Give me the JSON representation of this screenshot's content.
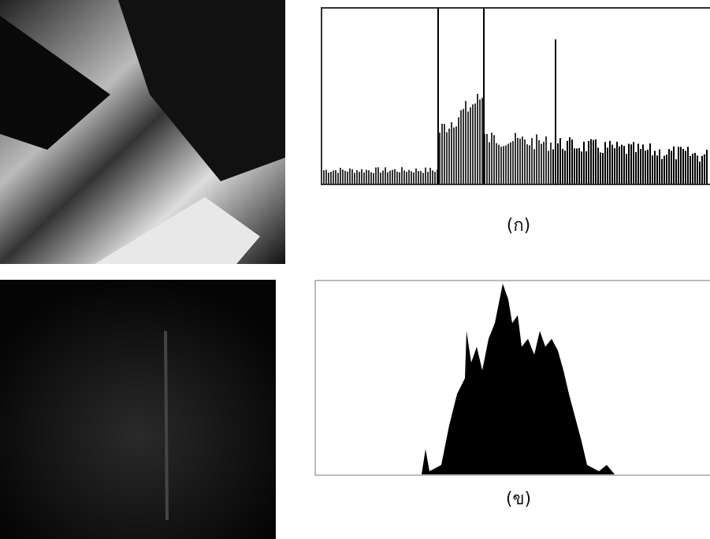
{
  "figure": {
    "caption_a": "(ก)",
    "caption_b": "(ข)"
  }
}
